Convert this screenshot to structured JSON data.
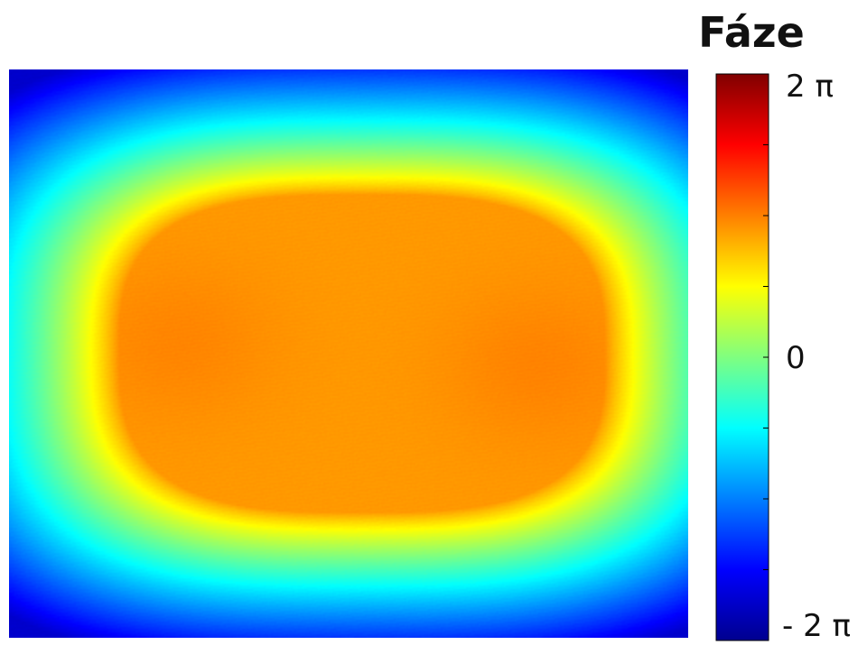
{
  "chart_data": {
    "type": "heatmap",
    "title": "Fáze",
    "xlabel": "",
    "ylabel": "",
    "colormap": "jet",
    "colorbar": {
      "label": "Fáze",
      "range": [
        "-2π",
        "2π"
      ],
      "ticks": [
        {
          "value": 2,
          "label": "2 π"
        },
        {
          "value": 0,
          "label": "0"
        },
        {
          "value": -2,
          "label": "- 2 π"
        }
      ],
      "value_unit": "π rad"
    },
    "grid": false,
    "field_description": "Smooth phase map: elongated high-phase lobe in the centre falling off to low phase at edges and corners",
    "peaks": [
      {
        "x": 0.25,
        "y": 0.48,
        "value": 0.88
      },
      {
        "x": 0.78,
        "y": 0.52,
        "value": 0.95
      }
    ],
    "levels": {
      "centre": 0.9,
      "edges": -0.5,
      "corners": -1.7
    }
  },
  "colors": {
    "jet_dark_blue": "#00008f",
    "jet_blue": "#0000ff",
    "jet_cyan": "#00ffff",
    "jet_yellow": "#ffff00",
    "jet_red": "#ff0000",
    "jet_dark_red": "#800000"
  }
}
